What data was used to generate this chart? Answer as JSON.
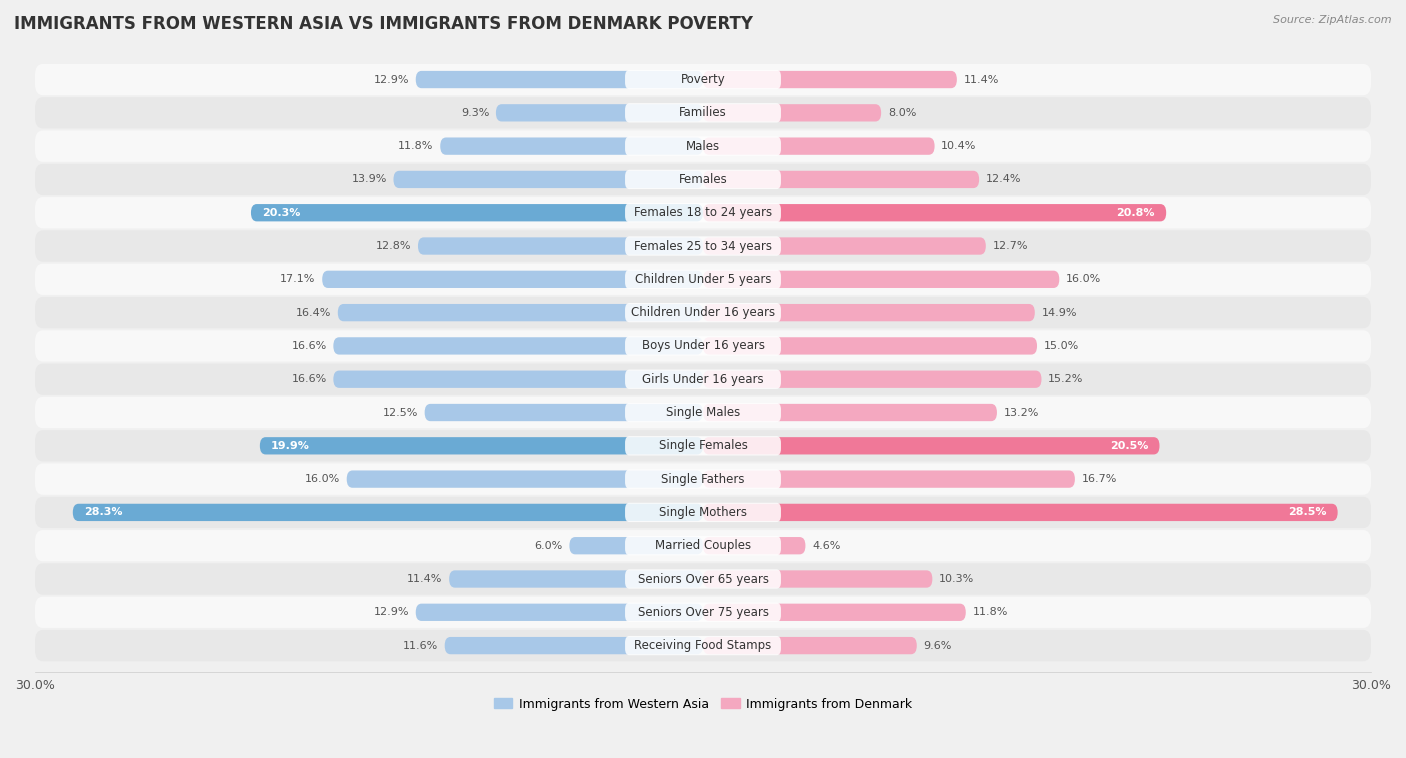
{
  "title": "IMMIGRANTS FROM WESTERN ASIA VS IMMIGRANTS FROM DENMARK POVERTY",
  "source": "Source: ZipAtlas.com",
  "categories": [
    "Poverty",
    "Families",
    "Males",
    "Females",
    "Females 18 to 24 years",
    "Females 25 to 34 years",
    "Children Under 5 years",
    "Children Under 16 years",
    "Boys Under 16 years",
    "Girls Under 16 years",
    "Single Males",
    "Single Females",
    "Single Fathers",
    "Single Mothers",
    "Married Couples",
    "Seniors Over 65 years",
    "Seniors Over 75 years",
    "Receiving Food Stamps"
  ],
  "western_asia": [
    12.9,
    9.3,
    11.8,
    13.9,
    20.3,
    12.8,
    17.1,
    16.4,
    16.6,
    16.6,
    12.5,
    19.9,
    16.0,
    28.3,
    6.0,
    11.4,
    12.9,
    11.6
  ],
  "denmark": [
    11.4,
    8.0,
    10.4,
    12.4,
    20.8,
    12.7,
    16.0,
    14.9,
    15.0,
    15.2,
    13.2,
    20.5,
    16.7,
    28.5,
    4.6,
    10.3,
    11.8,
    9.6
  ],
  "western_asia_color": "#a8c8e8",
  "denmark_color": "#f4a8c0",
  "western_asia_highlight_color": "#6aaad4",
  "denmark_highlight_color": "#f07898",
  "highlight_rows": [
    4,
    11,
    13
  ],
  "axis_max": 30.0,
  "background_color": "#f0f0f0",
  "row_bg_light": "#f8f8f8",
  "row_bg_dark": "#e8e8e8",
  "label_fontsize": 8.5,
  "value_fontsize": 8.0,
  "title_fontsize": 12,
  "legend_wa": "Immigrants from Western Asia",
  "legend_dk": "Immigrants from Denmark"
}
